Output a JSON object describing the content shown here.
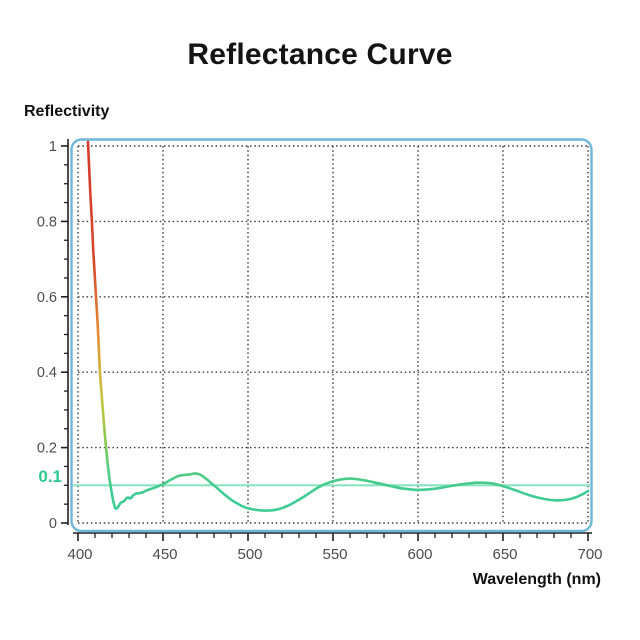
{
  "title": "Reflectance Curve",
  "colors": {
    "frame_blue": "#6fb7d9",
    "grid": "#3a3a3a",
    "axis_spine": "#1f1f1f",
    "tick_label": "#4c4c4c",
    "reference_line": "#8be4c0",
    "reference_label": "#2fc98f",
    "curve_green": "#3fcb95",
    "curve_red": "#d63a2a"
  },
  "chart_data": {
    "type": "line",
    "title": "Reflectance Curve",
    "xlabel": "Wavelength (nm)",
    "ylabel": "Reflectivity",
    "xlim": [
      400,
      700
    ],
    "ylim": [
      0,
      1
    ],
    "grid": true,
    "x_ticks": [
      400,
      450,
      500,
      550,
      600,
      650,
      700
    ],
    "x_minor_step": 10,
    "y_ticks": [
      "1",
      "0.8",
      "0.6",
      "0.4",
      "0.2",
      "0"
    ],
    "y_tick_values": [
      1,
      0.8,
      0.6,
      0.4,
      0.2,
      0
    ],
    "y_minor_step": 0.05,
    "reference_line": {
      "value": 0.1,
      "label": "0.1"
    },
    "gradient_stops": [
      {
        "offset": 0.0,
        "color": "#d63a2a"
      },
      {
        "offset": 0.3,
        "color": "#d74730"
      },
      {
        "offset": 0.48,
        "color": "#e2862f"
      },
      {
        "offset": 0.6,
        "color": "#d2b43c"
      },
      {
        "offset": 0.7,
        "color": "#b9c640"
      },
      {
        "offset": 0.78,
        "color": "#8cc94f"
      },
      {
        "offset": 0.85,
        "color": "#55cb7d"
      },
      {
        "offset": 0.92,
        "color": "#3fcb93"
      },
      {
        "offset": 1.0,
        "color": "#3fcb95"
      }
    ],
    "series": [
      {
        "name": "Reflectivity",
        "x": [
          405.2,
          406.5,
          407.3,
          408.2,
          409,
          409.8,
          410.6,
          411.4,
          412.2,
          412.9,
          413.8,
          414.7,
          415.6,
          416.5,
          417.4,
          418.3,
          419.3,
          420.3,
          421,
          421.8,
          422.5,
          423.5,
          424.5,
          425.5,
          426.5,
          427.5,
          428.5,
          429.5,
          430.5,
          431.5,
          432.5,
          434,
          436,
          438,
          440,
          442,
          444,
          446,
          448,
          450,
          452,
          454,
          456,
          458,
          460,
          462,
          464,
          466,
          468,
          470,
          472,
          474,
          476,
          478,
          480,
          482,
          484,
          486,
          488,
          490,
          492,
          494,
          496,
          498,
          500,
          503,
          506,
          509,
          512,
          515,
          518,
          521,
          524,
          527,
          530,
          533,
          536,
          539,
          542,
          545,
          548,
          551,
          554,
          557,
          560,
          563,
          566,
          570,
          574,
          578,
          582,
          586,
          590,
          594,
          598,
          602,
          606,
          610,
          614,
          618,
          622,
          626,
          630,
          634,
          638,
          642,
          646,
          650,
          654,
          658,
          662,
          666,
          670,
          674,
          678,
          682,
          686,
          690,
          694,
          698,
          700
        ],
        "y": [
          1.08,
          0.95,
          0.87,
          0.8,
          0.72,
          0.66,
          0.6,
          0.54,
          0.47,
          0.4,
          0.345,
          0.295,
          0.245,
          0.2,
          0.16,
          0.125,
          0.095,
          0.068,
          0.052,
          0.04,
          0.038,
          0.042,
          0.05,
          0.055,
          0.056,
          0.06,
          0.066,
          0.068,
          0.065,
          0.068,
          0.074,
          0.078,
          0.079,
          0.081,
          0.086,
          0.089,
          0.092,
          0.095,
          0.099,
          0.103,
          0.108,
          0.113,
          0.118,
          0.123,
          0.126,
          0.127,
          0.128,
          0.129,
          0.131,
          0.131,
          0.128,
          0.122,
          0.115,
          0.107,
          0.1,
          0.092,
          0.084,
          0.076,
          0.069,
          0.062,
          0.056,
          0.051,
          0.046,
          0.042,
          0.039,
          0.036,
          0.034,
          0.033,
          0.033,
          0.034,
          0.037,
          0.041,
          0.047,
          0.054,
          0.062,
          0.07,
          0.079,
          0.088,
          0.096,
          0.103,
          0.108,
          0.112,
          0.115,
          0.117,
          0.118,
          0.117,
          0.115,
          0.112,
          0.108,
          0.104,
          0.1,
          0.096,
          0.092,
          0.09,
          0.088,
          0.088,
          0.089,
          0.091,
          0.094,
          0.097,
          0.1,
          0.103,
          0.105,
          0.107,
          0.107,
          0.106,
          0.103,
          0.098,
          0.092,
          0.086,
          0.079,
          0.073,
          0.068,
          0.064,
          0.061,
          0.06,
          0.061,
          0.064,
          0.07,
          0.079,
          0.085
        ]
      }
    ]
  }
}
